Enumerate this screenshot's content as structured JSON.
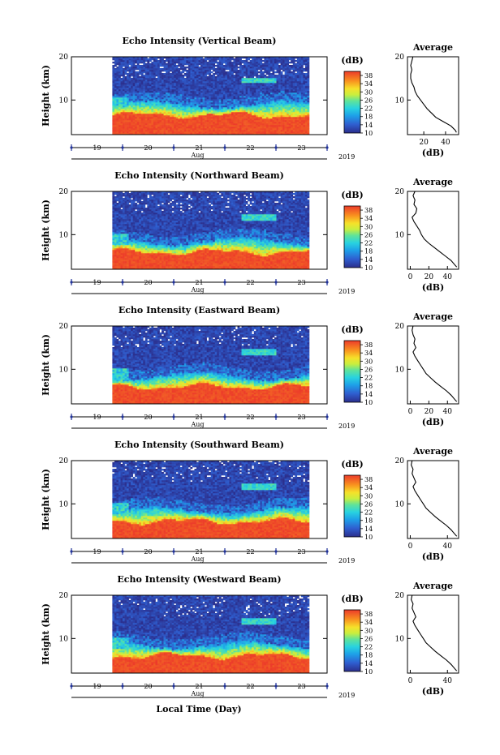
{
  "figure": {
    "xlabel": "Local Time (Day)"
  },
  "chart_data": [
    {
      "type": "heatmap",
      "title": "Echo Intensity (Vertical Beam)",
      "ylabel": "Height (km)",
      "ylim": [
        2,
        20
      ],
      "yticks": [
        10,
        20
      ],
      "xlim": [
        18.5,
        23.5
      ],
      "xticks": [
        19,
        20,
        21,
        22,
        23
      ],
      "month_label": "Aug",
      "year_label": "2019",
      "data_start": 19.3,
      "data_end": 23.15,
      "colorbar": {
        "unit": "(dB)",
        "ticks": [
          10,
          14,
          18,
          22,
          26,
          30,
          34,
          38
        ],
        "range": [
          10,
          40
        ]
      },
      "features": {
        "surface_top_km": 6.5,
        "transition_km": 9,
        "feature_km": 14.5
      },
      "avg_profile": {
        "title": "Average",
        "xlabel": "(dB)",
        "xticks": [
          20,
          40
        ],
        "xlim": [
          5,
          52
        ],
        "ylim": [
          2,
          20
        ],
        "yticks": [
          10,
          20
        ],
        "points": [
          [
            10,
            20
          ],
          [
            9,
            19
          ],
          [
            8,
            18
          ],
          [
            9,
            17
          ],
          [
            8,
            16
          ],
          [
            8,
            15
          ],
          [
            9,
            14
          ],
          [
            11,
            13
          ],
          [
            12,
            12
          ],
          [
            14,
            11
          ],
          [
            17,
            10
          ],
          [
            20,
            9
          ],
          [
            23,
            8
          ],
          [
            27,
            7
          ],
          [
            31,
            6
          ],
          [
            38,
            5
          ],
          [
            45,
            4
          ],
          [
            49,
            3
          ],
          [
            50,
            2.5
          ]
        ]
      }
    },
    {
      "type": "heatmap",
      "title": "Echo Intensity (Northward Beam)",
      "ylabel": "Height (km)",
      "ylim": [
        2,
        20
      ],
      "yticks": [
        10,
        20
      ],
      "xlim": [
        18.5,
        23.5
      ],
      "xticks": [
        19,
        20,
        21,
        22,
        23
      ],
      "month_label": "Aug",
      "year_label": "2019",
      "data_start": 19.3,
      "data_end": 23.15,
      "colorbar": {
        "unit": "(dB)",
        "ticks": [
          10,
          14,
          18,
          22,
          26,
          30,
          34,
          38
        ],
        "range": [
          10,
          40
        ]
      },
      "features": {
        "surface_top_km": 6,
        "transition_km": 8.5,
        "feature_km": 14
      },
      "avg_profile": {
        "title": "Average",
        "xlabel": "(dB)",
        "xticks": [
          0,
          20,
          40
        ],
        "xlim": [
          -3,
          52
        ],
        "ylim": [
          2,
          20
        ],
        "yticks": [
          10,
          20
        ],
        "points": [
          [
            5,
            20
          ],
          [
            3,
            19
          ],
          [
            5,
            18
          ],
          [
            4,
            17
          ],
          [
            7,
            16
          ],
          [
            6,
            15
          ],
          [
            2,
            14
          ],
          [
            4,
            13
          ],
          [
            7,
            12
          ],
          [
            10,
            11
          ],
          [
            12,
            10
          ],
          [
            15,
            9
          ],
          [
            20,
            8
          ],
          [
            26,
            7
          ],
          [
            32,
            6
          ],
          [
            38,
            5
          ],
          [
            44,
            4
          ],
          [
            48,
            3
          ],
          [
            50,
            2.5
          ]
        ]
      }
    },
    {
      "type": "heatmap",
      "title": "Echo Intensity (Eastward Beam)",
      "ylabel": "Height (km)",
      "ylim": [
        2,
        20
      ],
      "yticks": [
        10,
        20
      ],
      "xlim": [
        18.5,
        23.5
      ],
      "xticks": [
        19,
        20,
        21,
        22,
        23
      ],
      "month_label": "Aug",
      "year_label": "2019",
      "data_start": 19.3,
      "data_end": 23.15,
      "colorbar": {
        "unit": "(dB)",
        "ticks": [
          10,
          14,
          18,
          22,
          26,
          30,
          34,
          38
        ],
        "range": [
          10,
          40
        ]
      },
      "features": {
        "surface_top_km": 6,
        "transition_km": 8.5,
        "feature_km": 14
      },
      "avg_profile": {
        "title": "Average",
        "xlabel": "(dB)",
        "xticks": [
          0,
          20,
          40
        ],
        "xlim": [
          -3,
          52
        ],
        "ylim": [
          2,
          20
        ],
        "yticks": [
          10,
          20
        ],
        "points": [
          [
            3,
            20
          ],
          [
            2,
            19
          ],
          [
            3,
            18
          ],
          [
            5,
            17
          ],
          [
            4,
            16
          ],
          [
            6,
            15
          ],
          [
            3,
            14
          ],
          [
            5,
            13
          ],
          [
            8,
            12
          ],
          [
            11,
            11
          ],
          [
            14,
            10
          ],
          [
            17,
            9
          ],
          [
            22,
            8
          ],
          [
            27,
            7
          ],
          [
            33,
            6
          ],
          [
            39,
            5
          ],
          [
            44,
            4
          ],
          [
            48,
            3
          ],
          [
            50,
            2.5
          ]
        ]
      }
    },
    {
      "type": "heatmap",
      "title": "Echo Intensity (Southward Beam)",
      "ylabel": "Height (km)",
      "ylim": [
        2,
        20
      ],
      "yticks": [
        10,
        20
      ],
      "xlim": [
        18.5,
        23.5
      ],
      "xticks": [
        19,
        20,
        21,
        22,
        23
      ],
      "month_label": "Aug",
      "year_label": "2019",
      "data_start": 19.3,
      "data_end": 23.15,
      "colorbar": {
        "unit": "(dB)",
        "ticks": [
          10,
          14,
          18,
          22,
          26,
          30,
          34,
          38
        ],
        "range": [
          10,
          40
        ]
      },
      "features": {
        "surface_top_km": 6,
        "transition_km": 8.5,
        "feature_km": 14
      },
      "avg_profile": {
        "title": "Average",
        "xlabel": "(dB)",
        "xticks": [
          0,
          40
        ],
        "xlim": [
          -3,
          52
        ],
        "ylim": [
          2,
          20
        ],
        "yticks": [
          10,
          20
        ],
        "points": [
          [
            2,
            20
          ],
          [
            1,
            19
          ],
          [
            3,
            18
          ],
          [
            2,
            17
          ],
          [
            4,
            16
          ],
          [
            6,
            15
          ],
          [
            3,
            14
          ],
          [
            5,
            13
          ],
          [
            8,
            12
          ],
          [
            11,
            11
          ],
          [
            14,
            10
          ],
          [
            17,
            9
          ],
          [
            22,
            8
          ],
          [
            27,
            7
          ],
          [
            33,
            6
          ],
          [
            39,
            5
          ],
          [
            44,
            4
          ],
          [
            48,
            3
          ],
          [
            50,
            2.5
          ]
        ]
      }
    },
    {
      "type": "heatmap",
      "title": "Echo Intensity (Westward Beam)",
      "ylabel": "Height (km)",
      "ylim": [
        2,
        20
      ],
      "yticks": [
        10,
        20
      ],
      "xlim": [
        18.5,
        23.5
      ],
      "xticks": [
        19,
        20,
        21,
        22,
        23
      ],
      "month_label": "Aug",
      "year_label": "2019",
      "data_start": 19.3,
      "data_end": 23.15,
      "colorbar": {
        "unit": "(dB)",
        "ticks": [
          10,
          14,
          18,
          22,
          26,
          30,
          34,
          38
        ],
        "range": [
          10,
          40
        ]
      },
      "features": {
        "surface_top_km": 6,
        "transition_km": 8.5,
        "feature_km": 14
      },
      "avg_profile": {
        "title": "Average",
        "xlabel": "(dB)",
        "xticks": [
          0,
          40
        ],
        "xlim": [
          -3,
          52
        ],
        "ylim": [
          2,
          20
        ],
        "yticks": [
          10,
          20
        ],
        "points": [
          [
            2,
            20
          ],
          [
            1,
            19
          ],
          [
            3,
            18
          ],
          [
            2,
            17
          ],
          [
            4,
            16
          ],
          [
            6,
            15
          ],
          [
            3,
            14
          ],
          [
            5,
            13
          ],
          [
            8,
            12
          ],
          [
            11,
            11
          ],
          [
            14,
            10
          ],
          [
            17,
            9
          ],
          [
            22,
            8
          ],
          [
            27,
            7
          ],
          [
            33,
            6
          ],
          [
            39,
            5
          ],
          [
            44,
            4
          ],
          [
            48,
            3
          ],
          [
            50,
            2.5
          ]
        ]
      }
    }
  ]
}
